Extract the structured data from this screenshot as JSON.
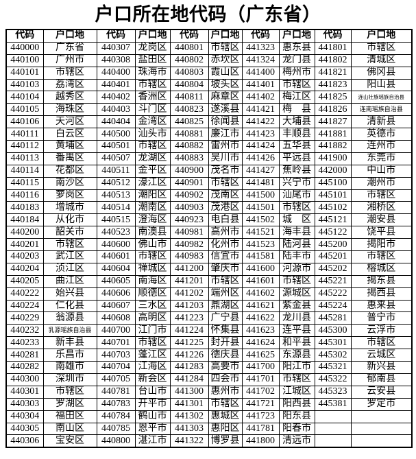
{
  "title": "户口所在地代码（广东省）",
  "table": {
    "header": [
      "代码",
      "户口地",
      "代码",
      "户口地",
      "代码",
      "户口地",
      "代码",
      "户口地",
      "代码",
      "户口地"
    ],
    "rows": [
      [
        "440000",
        "广东省",
        "440307",
        "龙岗区",
        "440801",
        "市辖区",
        "441323",
        "惠东县",
        "441801",
        "市辖区"
      ],
      [
        "440100",
        "广州市",
        "440308",
        "盐田区",
        "440802",
        "赤坎区",
        "441324",
        "龙门县",
        "441802",
        "清城区"
      ],
      [
        "440101",
        "市辖区",
        "440400",
        "珠海市",
        "440803",
        "霞山区",
        "441400",
        "梅州市",
        "441821",
        "佛冈县"
      ],
      [
        "440103",
        "荔湾区",
        "440401",
        "市辖区",
        "440804",
        "坡头区",
        "441401",
        "市辖区",
        "441823",
        "阳山县"
      ],
      [
        "440104",
        "越秀区",
        "440402",
        "香洲区",
        "440811",
        "麻章区",
        "441402",
        "梅江区",
        "441825",
        "连山壮族瑶族自治县"
      ],
      [
        "440105",
        "海珠区",
        "440403",
        "斗门区",
        "440823",
        "遂溪县",
        "441421",
        "梅　县",
        "441826",
        "连南瑶族自治县"
      ],
      [
        "440106",
        "天河区",
        "440404",
        "金湾区",
        "440825",
        "徐闻县",
        "441422",
        "大埔县",
        "441827",
        "清新县"
      ],
      [
        "440111",
        "白云区",
        "440500",
        "汕头市",
        "440881",
        "廉江市",
        "441423",
        "丰顺县",
        "441881",
        "英德市"
      ],
      [
        "440112",
        "黄埔区",
        "440501",
        "市辖区",
        "440882",
        "雷州市",
        "441424",
        "五华县",
        "441882",
        "连州市"
      ],
      [
        "440113",
        "番禺区",
        "440507",
        "龙湖区",
        "440883",
        "吴川市",
        "441426",
        "平远县",
        "441900",
        "东莞市"
      ],
      [
        "440114",
        "花都区",
        "440511",
        "金平区",
        "440900",
        "茂名市",
        "441427",
        "蕉岭县",
        "442000",
        "中山市"
      ],
      [
        "440115",
        "南沙区",
        "440512",
        "濠江区",
        "440901",
        "市辖区",
        "441481",
        "兴宁市",
        "445100",
        "潮州市"
      ],
      [
        "440116",
        "萝岗区",
        "440513",
        "潮阳区",
        "440902",
        "茂南区",
        "441500",
        "汕尾市",
        "445101",
        "市辖区"
      ],
      [
        "440183",
        "增城市",
        "440514",
        "潮南区",
        "440903",
        "茂港区",
        "441501",
        "市辖区",
        "445102",
        "湘桥区"
      ],
      [
        "440184",
        "从化市",
        "440515",
        "澄海区",
        "440923",
        "电白县",
        "441502",
        "城　区",
        "445121",
        "潮安县"
      ],
      [
        "440200",
        "韶关市",
        "440523",
        "南澳县",
        "440981",
        "高州市",
        "441521",
        "海丰县",
        "445122",
        "饶平县"
      ],
      [
        "440201",
        "市辖区",
        "440600",
        "佛山市",
        "440982",
        "化州市",
        "441523",
        "陆河县",
        "445200",
        "揭阳市"
      ],
      [
        "440203",
        "武江区",
        "440601",
        "市辖区",
        "440983",
        "信宜市",
        "441581",
        "陆丰市",
        "445201",
        "市辖区"
      ],
      [
        "440204",
        "浈江区",
        "440604",
        "禅城区",
        "441200",
        "肇庆市",
        "441600",
        "河源市",
        "445202",
        "榕城区"
      ],
      [
        "440205",
        "曲江区",
        "440605",
        "南海区",
        "441201",
        "市辖区",
        "441601",
        "市辖区",
        "445221",
        "揭东县"
      ],
      [
        "440222",
        "始兴县",
        "440606",
        "顺德区",
        "441202",
        "端州区",
        "441602",
        "源城区",
        "445222",
        "揭西县"
      ],
      [
        "440224",
        "仁化县",
        "440607",
        "三水区",
        "441203",
        "鼎湖区",
        "441621",
        "紫金县",
        "445224",
        "惠来县"
      ],
      [
        "440229",
        "翁源县",
        "440608",
        "高明区",
        "441223",
        "广宁县",
        "441622",
        "龙川县",
        "445281",
        "普宁市"
      ],
      [
        "440232",
        "乳源瑶族自治县",
        "440700",
        "江门市",
        "441224",
        "怀集县",
        "441623",
        "连平县",
        "445300",
        "云浮市"
      ],
      [
        "440233",
        "新丰县",
        "440701",
        "市辖区",
        "441225",
        "封开县",
        "441624",
        "和平县",
        "445301",
        "市辖区"
      ],
      [
        "440281",
        "乐昌市",
        "440703",
        "蓬江区",
        "441226",
        "德庆县",
        "441625",
        "东源县",
        "445302",
        "云城区"
      ],
      [
        "440282",
        "南雄市",
        "440704",
        "江海区",
        "441283",
        "高要市",
        "441700",
        "阳江市",
        "445321",
        "新兴县"
      ],
      [
        "440300",
        "深圳市",
        "440705",
        "新会区",
        "441284",
        "四会市",
        "441701",
        "市辖区",
        "445322",
        "郁南县"
      ],
      [
        "440301",
        "市辖区",
        "440781",
        "台山市",
        "441300",
        "惠州市",
        "441702",
        "江城区",
        "445323",
        "云安县"
      ],
      [
        "440303",
        "罗湖区",
        "440783",
        "开平市",
        "441301",
        "市辖区",
        "441721",
        "阳西县",
        "445381",
        "罗定市"
      ],
      [
        "440304",
        "福田区",
        "440784",
        "鹤山市",
        "441302",
        "惠城区",
        "441723",
        "阳东县",
        "",
        ""
      ],
      [
        "440305",
        "南山区",
        "440785",
        "恩平市",
        "441303",
        "惠阳区",
        "441781",
        "阳春市",
        "",
        ""
      ],
      [
        "440306",
        "宝安区",
        "440800",
        "湛江市",
        "441322",
        "博罗县",
        "441800",
        "清远市",
        "",
        ""
      ]
    ]
  }
}
